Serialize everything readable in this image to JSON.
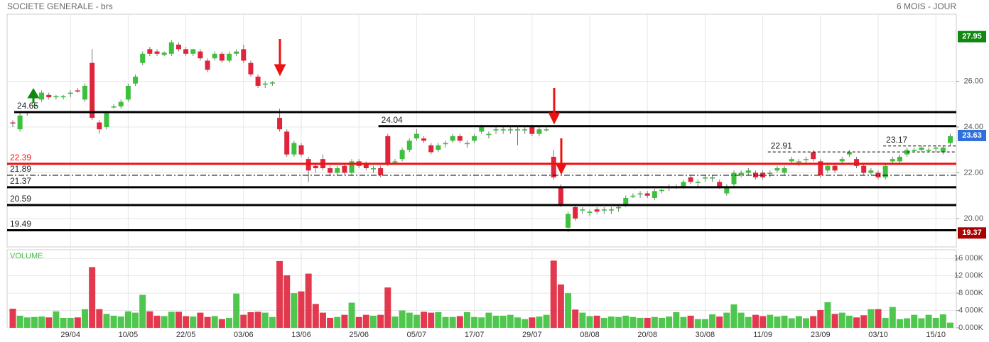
{
  "chart_data": [
    {
      "type": "candlestick",
      "title": "SOCIETE GENERALE - brs",
      "subtitle": "6 MOIS - JOUR",
      "categories": [
        null,
        null,
        null,
        null,
        null,
        null,
        null,
        null,
        "29/04",
        null,
        null,
        null,
        null,
        null,
        null,
        null,
        "10/05",
        null,
        null,
        null,
        null,
        null,
        null,
        null,
        "22/05",
        null,
        null,
        null,
        null,
        null,
        null,
        null,
        "03/06",
        null,
        null,
        null,
        null,
        null,
        null,
        null,
        "13/06",
        null,
        null,
        null,
        null,
        null,
        null,
        null,
        "25/06",
        null,
        null,
        null,
        null,
        null,
        null,
        null,
        "05/07",
        null,
        null,
        null,
        null,
        null,
        null,
        null,
        "17/07",
        null,
        null,
        null,
        null,
        null,
        null,
        null,
        "29/07",
        null,
        null,
        null,
        null,
        null,
        null,
        null,
        "08/08",
        null,
        null,
        null,
        null,
        null,
        null,
        null,
        "20/08",
        null,
        null,
        null,
        null,
        null,
        null,
        null,
        "30/08",
        null,
        null,
        null,
        null,
        null,
        null,
        null,
        "11/09",
        null,
        null,
        null,
        null,
        null,
        null,
        null,
        "23/09",
        null,
        null,
        null,
        null,
        null,
        null,
        null,
        "03/10",
        null,
        null,
        null,
        null,
        null,
        null,
        null,
        "15/10",
        null,
        null
      ],
      "open": [
        24.2,
        23.9,
        24.6,
        24.9,
        25.2,
        25.4,
        25.3,
        25.3,
        25.45,
        25.6,
        25.2,
        26.8,
        24.2,
        24.0,
        24.85,
        24.9,
        25.2,
        25.9,
        26.8,
        27.4,
        27.3,
        27.15,
        27.2,
        27.6,
        27.4,
        27.2,
        27.3,
        26.9,
        27.0,
        27.2,
        26.9,
        27.2,
        27.4,
        26.8,
        26.2,
        25.85,
        25.9,
        24.4,
        23.8,
        22.8,
        23.2,
        22.6,
        22.3,
        22.6,
        22.2,
        22.0,
        22.3,
        22.0,
        22.5,
        22.4,
        22.15,
        22.2,
        23.6,
        22.45,
        22.6,
        23.0,
        23.5,
        23.5,
        23.2,
        23.0,
        23.25,
        23.4,
        23.6,
        23.25,
        23.4,
        23.8,
        23.65,
        23.85,
        23.85,
        23.85,
        23.85,
        23.85,
        24.0,
        23.7,
        23.85,
        22.7,
        21.4,
        19.6,
        20.5,
        20.35,
        20.25,
        20.4,
        20.35,
        20.35,
        20.45,
        20.6,
        20.95,
        21.05,
        21.1,
        20.9,
        21.2,
        21.35,
        21.35,
        21.4,
        21.8,
        21.55,
        21.75,
        21.75,
        21.6,
        21.1,
        21.5,
        21.9,
        22.0,
        22.0,
        22.0,
        21.95,
        22.1,
        22.0,
        22.5,
        22.45,
        22.55,
        22.9,
        22.5,
        22.1,
        22.3,
        22.5,
        22.8,
        22.6,
        22.3,
        22.0,
        22.0,
        21.8,
        22.5,
        22.5,
        22.8,
        22.95,
        23.0,
        22.95,
        23.05,
        22.9,
        23.3
      ],
      "high": [
        24.3,
        24.6,
        24.7,
        25.0,
        25.6,
        25.5,
        25.4,
        25.4,
        25.6,
        25.7,
        25.9,
        27.4,
        24.3,
        24.7,
        25.0,
        25.2,
        25.9,
        26.3,
        27.3,
        27.5,
        27.4,
        27.3,
        27.8,
        27.7,
        27.5,
        27.4,
        27.4,
        27.0,
        27.3,
        27.3,
        27.3,
        27.4,
        27.6,
        26.9,
        26.3,
        26.0,
        26.0,
        24.8,
        23.9,
        23.4,
        23.3,
        22.7,
        22.4,
        22.8,
        22.3,
        22.3,
        22.4,
        22.6,
        22.6,
        22.5,
        22.3,
        22.3,
        23.7,
        22.6,
        23.1,
        23.5,
        23.9,
        23.6,
        23.3,
        23.3,
        23.4,
        23.7,
        23.7,
        23.4,
        23.7,
        24.1,
        23.8,
        24.0,
        24.0,
        24.0,
        24.0,
        24.0,
        24.1,
        24.0,
        24.0,
        23.0,
        21.5,
        20.3,
        20.6,
        20.5,
        20.4,
        20.5,
        20.5,
        20.5,
        20.6,
        21.0,
        21.1,
        21.2,
        21.2,
        21.3,
        21.3,
        21.5,
        21.5,
        21.7,
        21.9,
        21.7,
        21.9,
        21.9,
        21.7,
        21.5,
        22.1,
        22.1,
        22.2,
        22.1,
        22.1,
        22.1,
        22.3,
        22.3,
        22.7,
        22.6,
        22.7,
        23.0,
        22.6,
        22.4,
        22.4,
        22.7,
        23.0,
        22.7,
        22.4,
        22.2,
        22.1,
        22.4,
        22.7,
        22.8,
        23.1,
        23.1,
        23.2,
        23.1,
        23.2,
        23.2,
        23.7
      ],
      "low": [
        24.0,
        23.8,
        24.5,
        24.8,
        25.1,
        25.2,
        25.2,
        25.2,
        25.3,
        25.5,
        25.1,
        24.3,
        23.7,
        23.9,
        24.8,
        24.8,
        25.1,
        25.8,
        26.7,
        27.1,
        27.1,
        27.1,
        27.1,
        27.3,
        27.1,
        27.1,
        26.9,
        26.4,
        26.9,
        26.8,
        26.8,
        27.1,
        26.8,
        26.2,
        25.7,
        25.7,
        25.8,
        23.8,
        22.7,
        22.7,
        22.7,
        21.6,
        22.0,
        22.1,
        21.9,
        21.9,
        21.9,
        21.9,
        22.2,
        22.1,
        22.0,
        21.8,
        22.3,
        22.4,
        22.5,
        22.9,
        23.4,
        23.3,
        22.8,
        22.9,
        23.1,
        23.3,
        23.3,
        23.1,
        23.3,
        23.7,
        23.5,
        23.7,
        23.7,
        23.7,
        23.2,
        23.7,
        23.6,
        23.6,
        23.8,
        21.7,
        20.5,
        19.4,
        19.9,
        20.2,
        20.1,
        20.2,
        20.2,
        20.2,
        20.3,
        20.5,
        20.9,
        20.9,
        20.9,
        20.8,
        21.1,
        21.2,
        21.3,
        21.3,
        21.5,
        21.4,
        21.6,
        21.6,
        21.3,
        21.0,
        21.4,
        21.8,
        21.9,
        21.7,
        21.7,
        21.8,
        22.0,
        21.9,
        22.4,
        22.3,
        22.4,
        22.5,
        21.8,
        22.0,
        22.0,
        22.4,
        22.7,
        22.2,
        21.9,
        21.9,
        21.7,
        21.7,
        22.4,
        22.4,
        22.7,
        22.9,
        22.9,
        22.9,
        22.9,
        22.8,
        23.2
      ],
      "close": [
        24.15,
        24.5,
        24.65,
        24.95,
        25.5,
        25.3,
        25.35,
        25.35,
        25.5,
        25.55,
        25.8,
        24.4,
        23.9,
        24.6,
        24.9,
        25.1,
        25.8,
        26.2,
        27.2,
        27.2,
        27.2,
        27.25,
        27.7,
        27.4,
        27.2,
        27.4,
        27.0,
        26.5,
        27.2,
        26.9,
        27.2,
        27.3,
        26.9,
        26.3,
        25.8,
        25.9,
        25.95,
        23.9,
        22.8,
        23.3,
        22.8,
        22.1,
        22.2,
        22.2,
        22.0,
        22.2,
        22.0,
        22.5,
        22.3,
        22.2,
        22.2,
        21.9,
        22.4,
        22.5,
        23.0,
        23.4,
        23.7,
        23.4,
        22.9,
        23.2,
        23.3,
        23.6,
        23.4,
        23.3,
        23.6,
        24.0,
        23.7,
        23.9,
        23.9,
        23.9,
        23.9,
        23.9,
        23.7,
        23.9,
        23.9,
        21.8,
        20.6,
        20.2,
        20.0,
        20.4,
        20.3,
        20.3,
        20.4,
        20.4,
        20.5,
        20.9,
        21.0,
        21.1,
        21.0,
        21.2,
        21.25,
        21.4,
        21.4,
        21.6,
        21.6,
        21.6,
        21.8,
        21.8,
        21.4,
        21.4,
        22.0,
        22.0,
        22.1,
        21.8,
        21.8,
        22.0,
        22.2,
        22.2,
        22.6,
        22.5,
        22.6,
        22.6,
        21.9,
        22.3,
        22.1,
        22.6,
        22.9,
        22.3,
        22.0,
        22.1,
        21.8,
        22.3,
        22.6,
        22.7,
        23.0,
        23.0,
        23.1,
        23.0,
        23.1,
        23.1,
        23.6
      ],
      "up_color": "#3cc13c",
      "down_color": "#e0243c",
      "ylim": [
        18.76,
        28.93
      ],
      "yticks": [
        {
          "value": 20,
          "label": "20.00"
        },
        {
          "value": 22,
          "label": "22.00"
        },
        {
          "value": 24,
          "label": "24.00"
        },
        {
          "value": 26,
          "label": "26.00"
        }
      ],
      "levels": [
        {
          "value": 24.65,
          "color": "#000000",
          "style": "solid"
        },
        {
          "value": 24.04,
          "color": "#000000",
          "style": "solid"
        },
        {
          "value": 22.91,
          "color": "#000000",
          "style": "dashed"
        },
        {
          "value": 23.17,
          "color": "#000000",
          "style": "dashed"
        },
        {
          "value": 22.39,
          "color": "#ee1111",
          "style": "solid"
        },
        {
          "value": 21.89,
          "color": "#000000",
          "style": "dashdot"
        },
        {
          "value": 21.37,
          "color": "#000000",
          "style": "solid"
        },
        {
          "value": 20.59,
          "color": "#000000",
          "style": "solid"
        },
        {
          "value": 19.49,
          "color": "#000000",
          "style": "solid"
        }
      ],
      "markers": [
        {
          "value": 27.95,
          "color": "#118811"
        },
        {
          "value": 23.63,
          "color": "#2f6fdc"
        },
        {
          "value": 19.37,
          "color": "#aa0000"
        }
      ],
      "grid": true
    },
    {
      "type": "bar",
      "title": "VOLUME",
      "values": [
        4400,
        2800,
        2400,
        2500,
        2600,
        2400,
        3800,
        2300,
        2300,
        2400,
        4300,
        14000,
        4300,
        3200,
        2800,
        2600,
        3800,
        3500,
        7600,
        3800,
        2800,
        2700,
        3700,
        3700,
        2700,
        2600,
        3500,
        2500,
        2700,
        2000,
        2300,
        7900,
        3000,
        3600,
        3700,
        3500,
        2500,
        15400,
        12100,
        8000,
        8400,
        12500,
        5500,
        3500,
        2300,
        2500,
        3000,
        5800,
        2500,
        3000,
        2800,
        3000,
        9300,
        2600,
        4000,
        3500,
        3000,
        3700,
        3500,
        3600,
        2500,
        2500,
        2700,
        3600,
        2500,
        2400,
        3500,
        2800,
        2800,
        3000,
        2400,
        2000,
        2400,
        2600,
        3000,
        15500,
        10000,
        8000,
        4200,
        3500,
        2700,
        2800,
        2300,
        2600,
        2500,
        2800,
        2500,
        2300,
        2300,
        2500,
        2300,
        2600,
        3600,
        2500,
        2800,
        2000,
        2000,
        3100,
        2600,
        3500,
        5400,
        3500,
        2500,
        3000,
        2700,
        3000,
        2600,
        2800,
        2200,
        2700,
        2200,
        2700,
        4100,
        5900,
        3200,
        3500,
        2800,
        2400,
        2900,
        4300,
        4300,
        2300,
        4800,
        2000,
        2200,
        3000,
        2200,
        3000,
        2300,
        3100,
        1200
      ],
      "ylim": [
        0,
        18000
      ],
      "yticks": [
        {
          "value": 0,
          "label": "0.000K"
        },
        {
          "value": 4000,
          "label": "4 000K"
        },
        {
          "value": 8000,
          "label": "8 000K"
        },
        {
          "value": 12000,
          "label": "12 000K"
        },
        {
          "value": 16000,
          "label": "16 000K"
        }
      ],
      "grid": true
    }
  ]
}
